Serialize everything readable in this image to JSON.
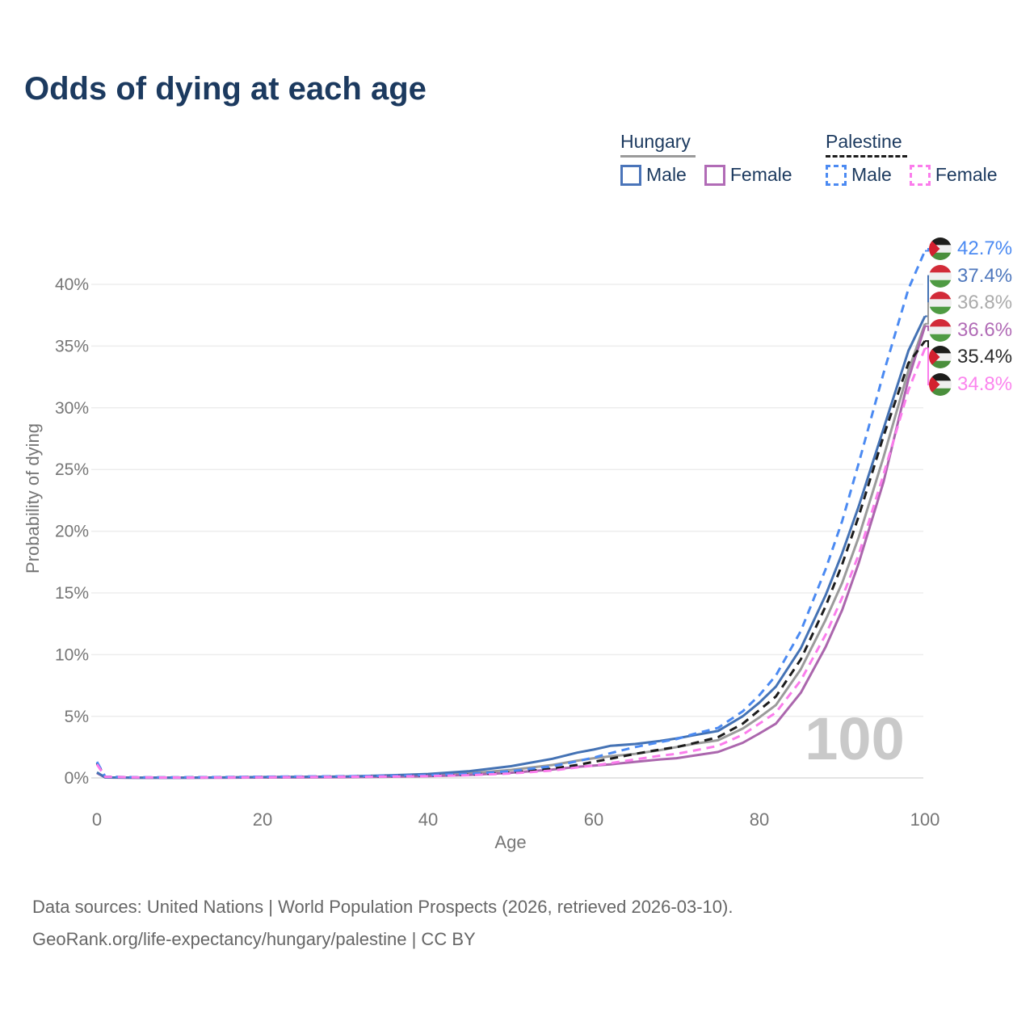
{
  "title": "Odds of dying at each age",
  "watermark": "100",
  "legend": {
    "groups": [
      {
        "country": "Hungary",
        "line_style": "solid",
        "underline_color": "#9a9a9a",
        "items": [
          {
            "label": "Male",
            "color": "#4a74b9"
          },
          {
            "label": "Female",
            "color": "#b16bb6"
          }
        ]
      },
      {
        "country": "Palestine",
        "line_style": "dashed",
        "underline_color": "#1c1c1c",
        "items": [
          {
            "label": "Male",
            "color": "#4b8af2"
          },
          {
            "label": "Female",
            "color": "#fb7cec"
          }
        ]
      }
    ]
  },
  "end_labels": [
    {
      "value": "42.7%",
      "flag": "palestine-flag-icon",
      "color": "#4b8af2",
      "series": "Palestine Male"
    },
    {
      "value": "37.4%",
      "flag": "hungary-flag-icon",
      "color": "#4f78bd",
      "series": "Hungary Male"
    },
    {
      "value": "36.8%",
      "flag": "hungary-flag-icon",
      "color": "#ababab",
      "series": "Hungary Total"
    },
    {
      "value": "36.6%",
      "flag": "hungary-flag-icon",
      "color": "#b16bb6",
      "series": "Hungary Female"
    },
    {
      "value": "35.4%",
      "flag": "palestine-flag-icon",
      "color": "#2b2b2b",
      "series": "Palestine Total"
    },
    {
      "value": "34.8%",
      "flag": "palestine-flag-icon",
      "color": "#fb85ee",
      "series": "Palestine Female"
    }
  ],
  "footer": {
    "line1": "Data sources: United Nations | World Population Prospects (2026, retrieved 2026-03-10).",
    "line2": "GeoRank.org/life-expectancy/hungary/palestine | CC BY"
  },
  "chart_data": {
    "type": "line",
    "title": "Odds of dying at each age",
    "xlabel": "Age",
    "ylabel": "Probability of dying",
    "x_ticks": [
      "0",
      "20",
      "40",
      "60",
      "80",
      "100"
    ],
    "y_ticks": [
      "0%",
      "5%",
      "10%",
      "15%",
      "20%",
      "25%",
      "30%",
      "35%",
      "40%"
    ],
    "xlim": [
      0,
      100
    ],
    "ylim_pct": [
      0,
      45
    ],
    "grid": "horizontal",
    "legend_position": "top-right",
    "ages": [
      0,
      1,
      5,
      10,
      15,
      20,
      25,
      30,
      35,
      40,
      45,
      50,
      55,
      58,
      60,
      62,
      65,
      68,
      70,
      72,
      75,
      78,
      80,
      82,
      85,
      88,
      90,
      92,
      95,
      98,
      100
    ],
    "series": [
      {
        "name": "Hungary Total",
        "country": "Hungary",
        "sex": "Total",
        "color": "#9b9b9b",
        "dashed": false,
        "end_label": "36.8%",
        "values": [
          0.42,
          0.03,
          0.01,
          0.02,
          0.03,
          0.05,
          0.07,
          0.09,
          0.14,
          0.22,
          0.38,
          0.65,
          1.05,
          1.4,
          1.6,
          1.75,
          1.95,
          2.25,
          2.5,
          2.75,
          3.05,
          4.0,
          4.9,
          5.9,
          8.8,
          12.8,
          15.8,
          19.5,
          26.0,
          33.0,
          36.8
        ]
      },
      {
        "name": "Hungary Female",
        "country": "Hungary",
        "sex": "Female",
        "color": "#ab66ad",
        "dashed": false,
        "end_label": "36.6%",
        "values": [
          0.4,
          0.03,
          0.01,
          0.01,
          0.02,
          0.03,
          0.04,
          0.06,
          0.09,
          0.14,
          0.24,
          0.42,
          0.68,
          0.9,
          1.0,
          1.1,
          1.3,
          1.5,
          1.6,
          1.8,
          2.1,
          2.85,
          3.6,
          4.4,
          6.9,
          10.6,
          13.6,
          17.4,
          24.0,
          32.3,
          36.6
        ]
      },
      {
        "name": "Hungary Male",
        "country": "Hungary",
        "sex": "Male",
        "color": "#4472b4",
        "dashed": false,
        "end_label": "37.4%",
        "values": [
          0.45,
          0.04,
          0.02,
          0.02,
          0.04,
          0.07,
          0.09,
          0.12,
          0.2,
          0.32,
          0.55,
          0.95,
          1.55,
          2.05,
          2.3,
          2.6,
          2.75,
          3.0,
          3.2,
          3.45,
          3.8,
          5.0,
          6.1,
          7.4,
          10.5,
          14.8,
          18.2,
          22.0,
          28.3,
          34.6,
          37.4
        ]
      },
      {
        "name": "Palestine Total",
        "country": "Palestine",
        "sex": "Total",
        "color": "#1c1c1c",
        "dashed": true,
        "end_label": "35.4%",
        "values": [
          1.2,
          0.1,
          0.04,
          0.04,
          0.06,
          0.08,
          0.1,
          0.12,
          0.14,
          0.18,
          0.26,
          0.44,
          0.75,
          1.05,
          1.3,
          1.55,
          1.95,
          2.3,
          2.5,
          2.8,
          3.3,
          4.4,
          5.5,
          6.6,
          9.6,
          13.9,
          17.3,
          21.2,
          27.7,
          33.6,
          35.4
        ]
      },
      {
        "name": "Palestine Male",
        "country": "Palestine",
        "sex": "Male",
        "color": "#4b8af2",
        "dashed": true,
        "end_label": "42.7%",
        "values": [
          1.3,
          0.1,
          0.05,
          0.05,
          0.07,
          0.1,
          0.12,
          0.14,
          0.17,
          0.22,
          0.33,
          0.55,
          0.95,
          1.35,
          1.65,
          2.0,
          2.5,
          2.9,
          3.15,
          3.55,
          4.05,
          5.4,
          6.7,
          8.3,
          11.9,
          16.9,
          20.8,
          25.5,
          32.8,
          39.6,
          42.7
        ]
      },
      {
        "name": "Palestine Female",
        "country": "Palestine",
        "sex": "Female",
        "color": "#fb7cec",
        "dashed": true,
        "end_label": "34.8%",
        "values": [
          1.1,
          0.09,
          0.04,
          0.03,
          0.04,
          0.06,
          0.07,
          0.09,
          0.11,
          0.15,
          0.22,
          0.36,
          0.6,
          0.85,
          1.0,
          1.2,
          1.5,
          1.8,
          1.95,
          2.2,
          2.6,
          3.5,
          4.4,
          5.3,
          7.9,
          11.6,
          14.6,
          18.1,
          24.6,
          31.4,
          34.8
        ]
      }
    ]
  }
}
